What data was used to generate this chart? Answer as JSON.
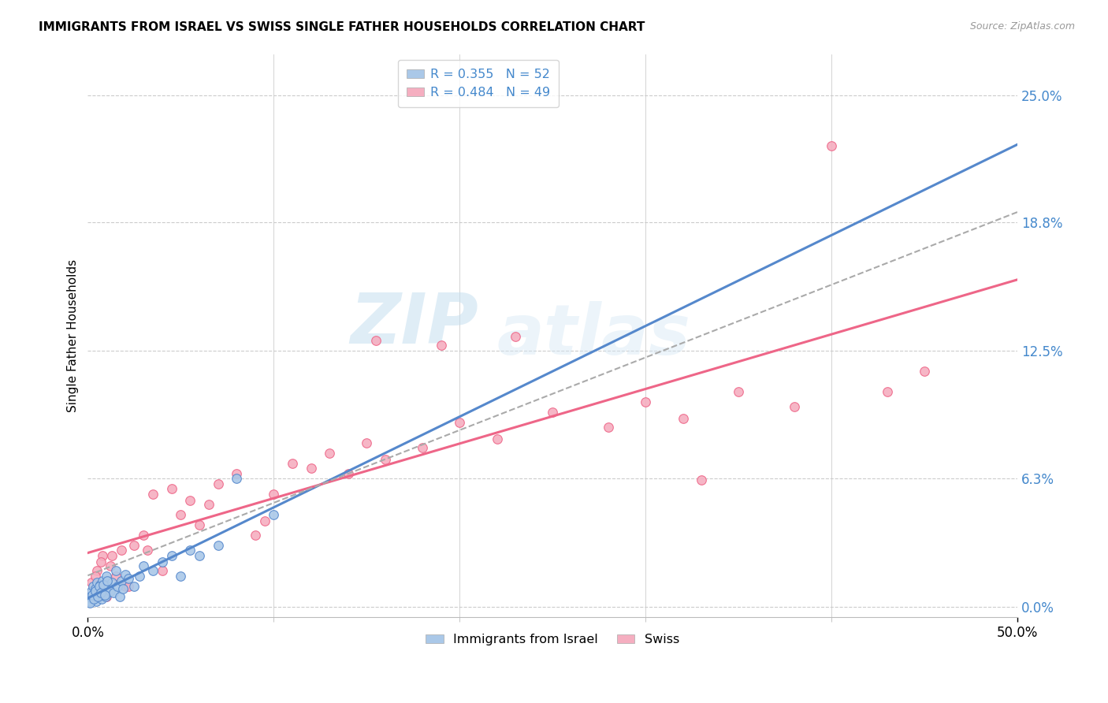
{
  "title": "IMMIGRANTS FROM ISRAEL VS SWISS SINGLE FATHER HOUSEHOLDS CORRELATION CHART",
  "source": "Source: ZipAtlas.com",
  "ylabel": "Single Father Households",
  "ytick_values": [
    0.0,
    6.3,
    12.5,
    18.8,
    25.0
  ],
  "xlim": [
    0.0,
    50.0
  ],
  "ylim": [
    -0.5,
    27.0
  ],
  "legend_r": [
    "R = 0.355",
    "R = 0.484"
  ],
  "legend_n": [
    "N = 52",
    "N = 49"
  ],
  "color_israel": "#aac8e8",
  "color_swiss": "#f5aec0",
  "color_israel_line": "#5588cc",
  "color_swiss_line": "#ee6688",
  "color_text_blue": "#4488cc",
  "watermark_zip": "ZIP",
  "watermark_atlas": "atlas",
  "legend_labels": [
    "Immigrants from Israel",
    "Swiss"
  ],
  "israel_x": [
    0.1,
    0.15,
    0.2,
    0.25,
    0.3,
    0.35,
    0.4,
    0.45,
    0.5,
    0.55,
    0.6,
    0.65,
    0.7,
    0.75,
    0.8,
    0.85,
    0.9,
    0.95,
    1.0,
    1.1,
    1.2,
    1.3,
    1.4,
    1.5,
    1.6,
    1.7,
    1.8,
    1.9,
    2.0,
    2.2,
    2.5,
    2.8,
    3.0,
    3.5,
    4.0,
    4.5,
    5.0,
    5.5,
    6.0,
    7.0,
    0.12,
    0.22,
    0.32,
    0.42,
    0.52,
    0.62,
    0.72,
    0.82,
    0.92,
    1.05,
    8.0,
    10.0
  ],
  "israel_y": [
    0.3,
    0.5,
    0.8,
    0.4,
    1.0,
    0.6,
    0.9,
    0.3,
    1.2,
    0.7,
    0.5,
    1.1,
    0.8,
    0.4,
    1.3,
    0.6,
    0.9,
    0.5,
    1.5,
    1.0,
    0.8,
    1.2,
    0.7,
    1.8,
    1.0,
    0.5,
    1.3,
    0.9,
    1.6,
    1.4,
    1.0,
    1.5,
    2.0,
    1.8,
    2.2,
    2.5,
    1.5,
    2.8,
    2.5,
    3.0,
    0.2,
    0.6,
    0.4,
    0.8,
    0.5,
    1.0,
    0.7,
    1.1,
    0.6,
    1.3,
    6.3,
    4.5
  ],
  "swiss_x": [
    0.2,
    0.5,
    0.8,
    1.0,
    1.2,
    1.5,
    1.8,
    2.0,
    2.5,
    3.0,
    3.5,
    4.0,
    4.5,
    5.0,
    5.5,
    6.0,
    7.0,
    8.0,
    9.0,
    10.0,
    11.0,
    12.0,
    13.0,
    14.0,
    15.0,
    16.0,
    18.0,
    20.0,
    22.0,
    25.0,
    28.0,
    30.0,
    32.0,
    35.0,
    38.0,
    40.0,
    43.0,
    45.0,
    2.2,
    6.5,
    9.5,
    15.5,
    19.0,
    23.0,
    33.0,
    0.4,
    0.7,
    1.3,
    3.2
  ],
  "swiss_y": [
    1.2,
    1.8,
    2.5,
    0.5,
    2.0,
    1.5,
    2.8,
    1.0,
    3.0,
    3.5,
    5.5,
    1.8,
    5.8,
    4.5,
    5.2,
    4.0,
    6.0,
    6.5,
    3.5,
    5.5,
    7.0,
    6.8,
    7.5,
    6.5,
    8.0,
    7.2,
    7.8,
    9.0,
    8.2,
    9.5,
    8.8,
    10.0,
    9.2,
    10.5,
    9.8,
    22.5,
    10.5,
    11.5,
    1.0,
    5.0,
    4.2,
    13.0,
    12.8,
    13.2,
    6.2,
    1.5,
    2.2,
    2.5,
    2.8
  ]
}
